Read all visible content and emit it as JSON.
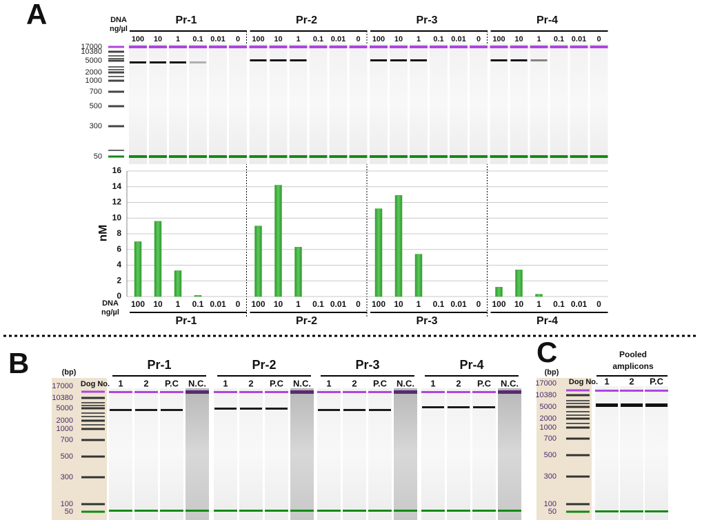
{
  "chart_data": {
    "type": "bar",
    "x_label": [
      "DNA",
      "ng/µl"
    ],
    "ylabel": "nM",
    "groups": [
      "Pr-1",
      "Pr-2",
      "Pr-3",
      "Pr-4"
    ],
    "categories": [
      "100",
      "10",
      "1",
      "0.1",
      "0.01",
      "0",
      "100",
      "10",
      "1",
      "0.1",
      "0.01",
      "0",
      "100",
      "10",
      "1",
      "0.1",
      "0.01",
      "0",
      "100",
      "10",
      "1",
      "0.1",
      "0.01",
      "0"
    ],
    "values": [
      7,
      9.6,
      3.3,
      0.15,
      0,
      0,
      9,
      14.2,
      6.3,
      0,
      0,
      0,
      11.2,
      12.9,
      5.4,
      0,
      0,
      0,
      1.2,
      3.4,
      0.3,
      0,
      0,
      0
    ],
    "color": "#3aaa35",
    "ylim": [
      0,
      16
    ],
    "yticks": [
      0,
      2,
      4,
      6,
      8,
      10,
      12,
      14,
      16
    ],
    "grid": true
  },
  "panel_a": {
    "label": "A",
    "ladder": [
      17000,
      10380,
      5000,
      2000,
      1000,
      700,
      500,
      300,
      50
    ]
  },
  "panel_b": {
    "label": "B",
    "unit": "(bp)",
    "ladder_title": "Dog No.",
    "ladder": [
      17000,
      10380,
      5000,
      2000,
      1000,
      700,
      500,
      300,
      100,
      50
    ],
    "groups": [
      "Pr-1",
      "Pr-2",
      "Pr-3",
      "Pr-4"
    ],
    "lanes": [
      "1",
      "2",
      "P.C",
      "N.C."
    ]
  },
  "panel_c": {
    "label": "C",
    "unit": "(bp)",
    "ladder_title": "Dog No.",
    "ladder": [
      17000,
      10380,
      5000,
      2000,
      1000,
      700,
      500,
      300,
      100,
      50
    ],
    "group": [
      "Pooled",
      "amplicons"
    ],
    "lanes": [
      "1",
      "2",
      "P.C"
    ]
  }
}
